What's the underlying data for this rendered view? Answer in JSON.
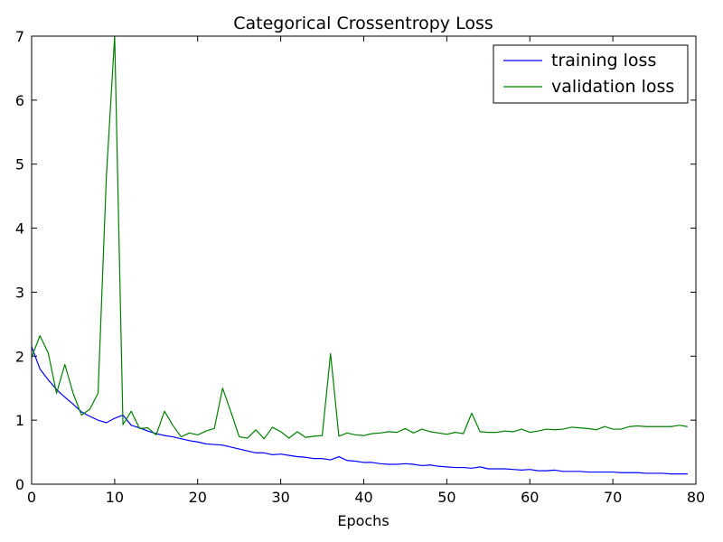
{
  "chart_data": {
    "type": "line",
    "title": "Categorical Crossentropy Loss",
    "xlabel": "Epochs",
    "ylabel": "",
    "xlim": [
      0,
      80
    ],
    "ylim": [
      0,
      7
    ],
    "xticks": [
      "0",
      "10",
      "20",
      "30",
      "40",
      "50",
      "60",
      "70",
      "80"
    ],
    "yticks": [
      "0",
      "1",
      "2",
      "3",
      "4",
      "5",
      "6",
      "7"
    ],
    "grid": false,
    "legend_position": "top-right",
    "x": [
      0,
      1,
      2,
      3,
      4,
      5,
      6,
      7,
      8,
      9,
      10,
      11,
      12,
      13,
      14,
      15,
      16,
      17,
      18,
      19,
      20,
      21,
      22,
      23,
      24,
      25,
      26,
      27,
      28,
      29,
      30,
      31,
      32,
      33,
      34,
      35,
      36,
      37,
      38,
      39,
      40,
      41,
      42,
      43,
      44,
      45,
      46,
      47,
      48,
      49,
      50,
      51,
      52,
      53,
      54,
      55,
      56,
      57,
      58,
      59,
      60,
      61,
      62,
      63,
      64,
      65,
      66,
      67,
      68,
      69,
      70,
      71,
      72,
      73,
      74,
      75,
      76,
      77,
      78,
      79
    ],
    "series": [
      {
        "name": "training loss",
        "color": "#0000ff",
        "values": [
          2.15,
          1.8,
          1.63,
          1.48,
          1.36,
          1.25,
          1.13,
          1.06,
          1.0,
          0.96,
          1.03,
          1.08,
          0.92,
          0.88,
          0.83,
          0.79,
          0.76,
          0.74,
          0.71,
          0.68,
          0.66,
          0.63,
          0.62,
          0.61,
          0.58,
          0.55,
          0.52,
          0.49,
          0.49,
          0.46,
          0.47,
          0.45,
          0.43,
          0.42,
          0.4,
          0.4,
          0.38,
          0.43,
          0.37,
          0.36,
          0.34,
          0.34,
          0.32,
          0.31,
          0.31,
          0.32,
          0.31,
          0.29,
          0.3,
          0.28,
          0.27,
          0.26,
          0.26,
          0.25,
          0.27,
          0.24,
          0.24,
          0.24,
          0.23,
          0.22,
          0.23,
          0.21,
          0.21,
          0.22,
          0.2,
          0.2,
          0.2,
          0.19,
          0.19,
          0.19,
          0.19,
          0.18,
          0.18,
          0.18,
          0.17,
          0.17,
          0.17,
          0.16,
          0.16,
          0.16
        ]
      },
      {
        "name": "validation loss",
        "color": "#008000",
        "values": [
          1.98,
          2.32,
          2.05,
          1.42,
          1.87,
          1.42,
          1.08,
          1.17,
          1.42,
          4.8,
          7.0,
          0.93,
          1.14,
          0.87,
          0.88,
          0.77,
          1.14,
          0.92,
          0.74,
          0.8,
          0.77,
          0.83,
          0.87,
          1.5,
          1.13,
          0.74,
          0.72,
          0.85,
          0.71,
          0.89,
          0.82,
          0.72,
          0.82,
          0.73,
          0.75,
          0.76,
          2.04,
          0.75,
          0.8,
          0.77,
          0.76,
          0.79,
          0.8,
          0.82,
          0.81,
          0.87,
          0.8,
          0.86,
          0.82,
          0.8,
          0.78,
          0.81,
          0.79,
          1.11,
          0.82,
          0.81,
          0.81,
          0.83,
          0.82,
          0.86,
          0.81,
          0.83,
          0.86,
          0.85,
          0.86,
          0.89,
          0.88,
          0.87,
          0.85,
          0.9,
          0.86,
          0.86,
          0.9,
          0.91,
          0.9,
          0.9,
          0.9,
          0.9,
          0.92,
          0.9
        ]
      }
    ]
  }
}
